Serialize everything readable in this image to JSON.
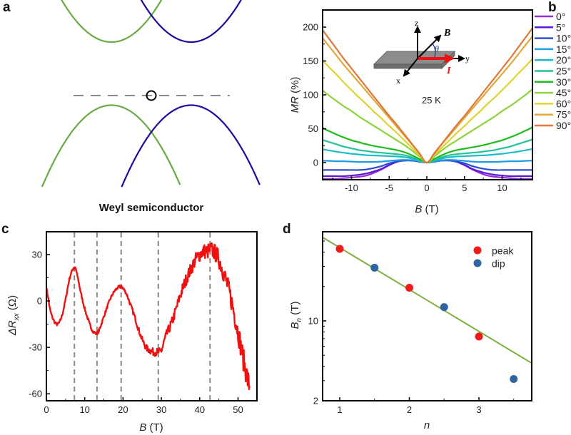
{
  "figure": {
    "panels": {
      "a": {
        "label": "a",
        "caption": "Weyl semiconductor"
      },
      "b": {
        "label": "b"
      },
      "c": {
        "label": "c"
      },
      "d": {
        "label": "d"
      }
    }
  },
  "chart_data": [
    {
      "panel": "a",
      "type": "line",
      "title": "Weyl semiconductor",
      "description": "Schematic band structure: two shifted conduction-band parabolas (green, blue) and two shifted valence-band parabolas crossing at a Weyl node below a dashed Fermi level line",
      "series": [
        {
          "name": "conduction-green",
          "color": "#6aaa45",
          "kind": "upward parabola",
          "vertex": [
            -0.6,
            0.15
          ]
        },
        {
          "name": "conduction-blue",
          "color": "#1e0aa0",
          "kind": "upward parabola",
          "vertex": [
            0.6,
            0.15
          ]
        },
        {
          "name": "valence-green",
          "color": "#6aaa45",
          "kind": "downward parabola",
          "vertex": [
            -0.6,
            -0.15
          ]
        },
        {
          "name": "valence-blue",
          "color": "#1e0aa0",
          "kind": "downward parabola",
          "vertex": [
            0.6,
            -0.15
          ]
        }
      ],
      "annotations": [
        "dashed horizontal line (Fermi level)",
        "circle marking Weyl node crossing"
      ],
      "colors": {
        "green": "#6aaa45",
        "blue": "#1e0aa0",
        "dash": "#888888"
      }
    },
    {
      "panel": "b",
      "type": "line",
      "xlabel": "B (T)",
      "ylabel": "MR (%)",
      "xlim": [
        -14,
        14
      ],
      "ylim": [
        -25,
        225
      ],
      "xticks": [
        -10,
        -5,
        0,
        5,
        10
      ],
      "yticks": [
        0,
        50,
        100,
        150,
        200
      ],
      "annotation": "25 K",
      "inset": {
        "axes": [
          "x",
          "y",
          "z"
        ],
        "field_label": "B",
        "angle_label": "θ",
        "current_label": "I"
      },
      "legend_position": "right-outside",
      "x": [
        0,
        1,
        2,
        3,
        4,
        5,
        6,
        7,
        8,
        9,
        10,
        11,
        12,
        13,
        14
      ],
      "series": [
        {
          "name": "0°",
          "color": "#9b2bd6",
          "values": [
            0,
            1.5,
            3,
            3,
            1,
            -4,
            -10,
            -15,
            -19,
            -21,
            -22,
            -23,
            -24,
            -24,
            -24
          ]
        },
        {
          "name": "5°",
          "color": "#5a1ad6",
          "values": [
            0,
            1.5,
            3,
            3,
            1,
            -3.5,
            -9,
            -13,
            -16,
            -18,
            -19,
            -20,
            -20,
            -20,
            -20
          ]
        },
        {
          "name": "10°",
          "color": "#2a4fd6",
          "values": [
            0,
            1.5,
            3,
            3,
            1.5,
            -1,
            -5,
            -8,
            -10,
            -11,
            -11,
            -11,
            -11,
            -11,
            -11
          ]
        },
        {
          "name": "15°",
          "color": "#1f9be6",
          "values": [
            0,
            2,
            3.5,
            4,
            3.5,
            2.5,
            1.5,
            1,
            1,
            1,
            1.5,
            2,
            2,
            2.5,
            3
          ]
        },
        {
          "name": "20°",
          "color": "#1fbdc9",
          "values": [
            0,
            3,
            6,
            8,
            9,
            9.5,
            10,
            10.5,
            11,
            12,
            13,
            14.5,
            16,
            18,
            20
          ]
        },
        {
          "name": "25°",
          "color": "#22c29a",
          "values": [
            0,
            4,
            8,
            11,
            12.5,
            13.5,
            14.5,
            15.5,
            17,
            18.5,
            21,
            23.5,
            27,
            30.5,
            34
          ]
        },
        {
          "name": "30°",
          "color": "#1ebd1e",
          "values": [
            0,
            5.5,
            11,
            15.5,
            18.5,
            20.5,
            22.5,
            24.5,
            27,
            30,
            33,
            37,
            41.5,
            46.5,
            52
          ]
        },
        {
          "name": "45°",
          "color": "#8bd43c",
          "values": [
            0,
            9,
            18,
            26,
            33,
            40,
            47,
            54,
            61,
            68,
            76,
            83,
            91,
            99,
            108
          ]
        },
        {
          "name": "60°",
          "color": "#e0d330",
          "values": [
            0,
            11,
            22,
            33,
            44,
            54,
            65,
            75,
            86,
            96,
            107,
            118,
            130,
            141,
            153
          ]
        },
        {
          "name": "75°",
          "color": "#e0a83a",
          "values": [
            0,
            13,
            27,
            40,
            53,
            66,
            79,
            92,
            105,
            118,
            131,
            144,
            158,
            172,
            186
          ]
        },
        {
          "name": "90°",
          "color": "#e0783a",
          "values": [
            0,
            14,
            28,
            42,
            56,
            69,
            83,
            97,
            111,
            125,
            139,
            153,
            168,
            183,
            198
          ]
        }
      ],
      "symmetry": "curves are symmetric in B (MR(-B) = MR(B))"
    },
    {
      "panel": "c",
      "type": "line",
      "xlabel": "B (T)",
      "ylabel": "ΔRxx (Ω)",
      "xlim": [
        0,
        55
      ],
      "ylim": [
        -65,
        45
      ],
      "xticks": [
        0,
        10,
        20,
        30,
        40,
        50
      ],
      "yticks": [
        -60,
        -30,
        0,
        30
      ],
      "vertical_dashed_lines_x": [
        7.3,
        13.2,
        19.5,
        29.2,
        42.7
      ],
      "series": [
        {
          "name": "ΔRxx",
          "color": "#f01010",
          "x": [
            0,
            1,
            2,
            3,
            4,
            5,
            6,
            7,
            7.5,
            8,
            9,
            10,
            11,
            12,
            13,
            13.5,
            14,
            15,
            16,
            17,
            18,
            19,
            19.5,
            20,
            21,
            22,
            23,
            24,
            25,
            26,
            27,
            28,
            29,
            30,
            31,
            32,
            33,
            34,
            35,
            36,
            37,
            38,
            39,
            40,
            41,
            42,
            43,
            44,
            45,
            46,
            47,
            48,
            49,
            50,
            51,
            52,
            53
          ],
          "values": [
            8,
            -6,
            -13,
            -15,
            -10,
            1,
            14,
            21,
            21,
            17,
            5,
            -5,
            -13,
            -19,
            -21,
            -20,
            -17,
            -10,
            -3,
            3,
            7,
            9,
            9,
            8,
            4,
            -3,
            -10,
            -18,
            -25,
            -30,
            -32,
            -33,
            -33,
            -32,
            -24,
            -18,
            -12,
            -4,
            4,
            11,
            17,
            22,
            27,
            30,
            32,
            32,
            33,
            31,
            27,
            20,
            12,
            3,
            -8,
            -20,
            -33,
            -45,
            -55
          ],
          "noise": "noise amplitude grows with B (approx ±1 Ω below 20 T to ±6 Ω above 40 T)"
        }
      ]
    },
    {
      "panel": "d",
      "type": "scatter",
      "xlabel": "n",
      "ylabel": "Bn (T)",
      "yscale": "log",
      "xlim": [
        0.75,
        3.75
      ],
      "ylim": [
        2,
        60
      ],
      "xticks": [
        1,
        2,
        3
      ],
      "yticks": [
        2,
        10
      ],
      "legend": [
        "peak",
        "dip"
      ],
      "legend_position": "top-right",
      "series": [
        {
          "name": "peak",
          "color": "#f01a1a",
          "x": [
            1,
            2,
            3
          ],
          "values": [
            42.7,
            19.5,
            7.3
          ]
        },
        {
          "name": "dip",
          "color": "#2e64a0",
          "x": [
            1.5,
            2.5,
            3.5
          ],
          "values": [
            29.2,
            13.2,
            3.1
          ]
        }
      ],
      "fit_line": {
        "name": "fit",
        "color": "#7fb040",
        "x": [
          0.75,
          3.75
        ],
        "values": [
          54,
          4.3
        ]
      }
    }
  ]
}
